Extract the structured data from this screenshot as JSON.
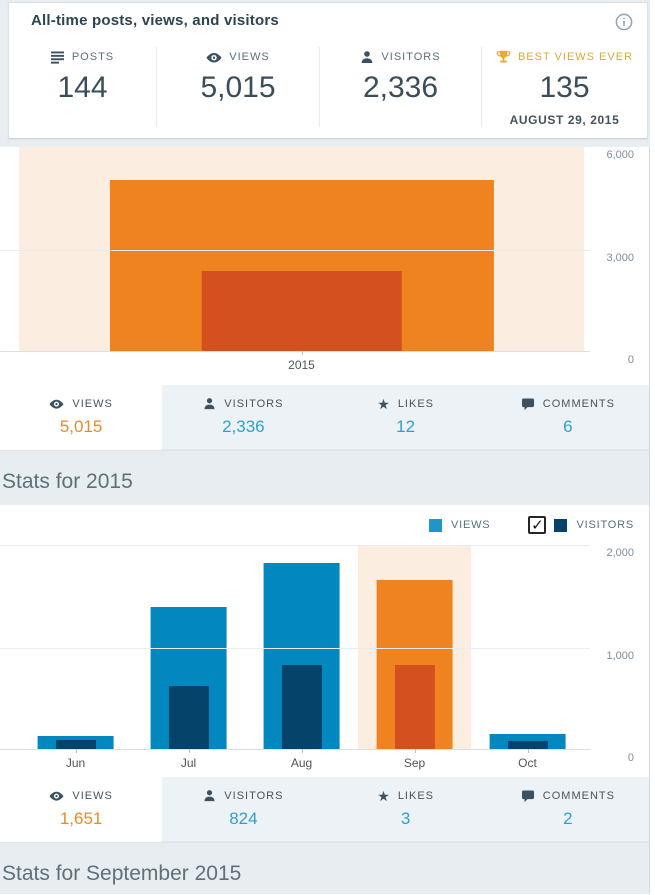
{
  "all_time": {
    "title": "All-time posts, views, and visitors",
    "stats": [
      {
        "icon": "posts-icon",
        "label": "POSTS",
        "value": "144"
      },
      {
        "icon": "eye-icon",
        "label": "VIEWS",
        "value": "5,015"
      },
      {
        "icon": "person-icon",
        "label": "VISITORS",
        "value": "2,336"
      },
      {
        "icon": "trophy-icon",
        "label": "BEST VIEWS EVER",
        "value": "135",
        "date": "AUGUST 29, 2015"
      }
    ]
  },
  "sections": {
    "year_heading": "Stats for 2015",
    "month_heading": "Stats for September 2015"
  },
  "legend": {
    "views_label": "VIEWS",
    "visitors_label": "VISITORS",
    "visitors_checked": true
  },
  "tab_bars": [
    {
      "tabs": [
        {
          "label": "VIEWS",
          "value": "5,015",
          "selected": true
        },
        {
          "label": "VISITORS",
          "value": "2,336",
          "selected": false
        },
        {
          "label": "LIKES",
          "value": "12",
          "selected": false
        },
        {
          "label": "COMMENTS",
          "value": "6",
          "selected": false
        }
      ]
    },
    {
      "tabs": [
        {
          "label": "VIEWS",
          "value": "1,651",
          "selected": true
        },
        {
          "label": "VISITORS",
          "value": "824",
          "selected": false
        },
        {
          "label": "LIKES",
          "value": "3",
          "selected": false
        },
        {
          "label": "COMMENTS",
          "value": "2",
          "selected": false
        }
      ]
    }
  ],
  "chart_data": [
    {
      "type": "bar",
      "categories": [
        "2015"
      ],
      "series": [
        {
          "name": "Views",
          "values": [
            5015
          ]
        },
        {
          "name": "Visitors",
          "values": [
            2336
          ]
        }
      ],
      "ymax": 6000,
      "yticks": [
        {
          "value": 6000,
          "label": "6,000",
          "line": false
        },
        {
          "value": 3000,
          "label": "3,000",
          "line": true
        },
        {
          "value": 0,
          "label": "0",
          "line": false
        }
      ],
      "highlighted": [
        "2015"
      ],
      "legend_shown": false,
      "xlabel": "",
      "ylabel": ""
    },
    {
      "type": "bar",
      "categories": [
        "Jun",
        "Jul",
        "Aug",
        "Sep",
        "Oct"
      ],
      "series": [
        {
          "name": "Views",
          "values": [
            130,
            1390,
            1810,
            1651,
            145
          ]
        },
        {
          "name": "Visitors",
          "values": [
            85,
            615,
            820,
            824,
            80
          ]
        }
      ],
      "ymax": 2000,
      "yticks": [
        {
          "value": 2000,
          "label": "2,000",
          "line": true
        },
        {
          "value": 1000,
          "label": "1,000",
          "line": true
        },
        {
          "value": 0,
          "label": "0",
          "line": false
        }
      ],
      "highlighted": [
        "Sep"
      ],
      "legend_shown": true,
      "xlabel": "",
      "ylabel": ""
    }
  ],
  "colors": {
    "views_blue": "#0288bf",
    "visitors_navy": "#06436a",
    "views_orange": "#ef8320",
    "visitors_dkorange": "#d4511f",
    "highlight_bg": "#fbeee0",
    "legend_views_square": "#2095c8",
    "legend_visitors_square": "#06436a",
    "value_orange": "#e78b28",
    "value_blue": "#2ea0ce",
    "gold": "#eda929"
  }
}
